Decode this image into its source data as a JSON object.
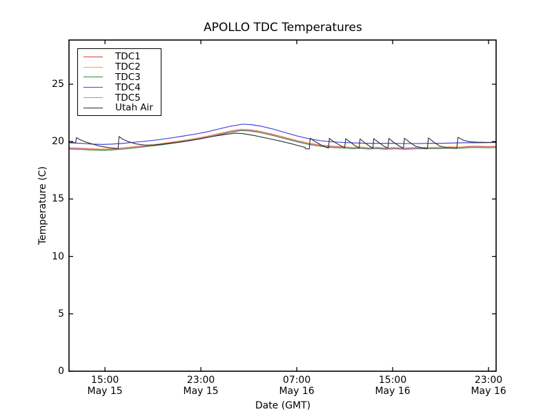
{
  "figure": {
    "background": "#ffffff",
    "frame_color": "#000000"
  },
  "chart_data": {
    "type": "line",
    "title": "APOLLO TDC Temperatures",
    "xlabel": "Date (GMT)",
    "ylabel": "Temperature (C)",
    "x_units": "hours since May 15 00:00 GMT",
    "xlim": [
      12.0,
      47.63
    ],
    "ylim": [
      0,
      28.85
    ],
    "grid": false,
    "legend_position": "upper left",
    "x_ticks": [
      {
        "pos": 15,
        "time": "15:00",
        "date": "May 15"
      },
      {
        "pos": 23,
        "time": "23:00",
        "date": "May 15"
      },
      {
        "pos": 31,
        "time": "07:00",
        "date": "May 16"
      },
      {
        "pos": 39,
        "time": "15:00",
        "date": "May 16"
      },
      {
        "pos": 47,
        "time": "23:00",
        "date": "May 16"
      }
    ],
    "y_ticks": [
      0,
      5,
      10,
      15,
      20,
      25
    ],
    "series": [
      {
        "name": "TDC1",
        "color": "#e03a33",
        "width": 1.2,
        "dash": "",
        "x": [
          12.0,
          13.0,
          14.0,
          14.8,
          15.5,
          16.5,
          17.5,
          18.5,
          19.5,
          20.5,
          21.5,
          22.5,
          23.5,
          24.5,
          25.5,
          26.3,
          27.0,
          27.8,
          29.0,
          30.0,
          31.0,
          32.0,
          33.0,
          34.0,
          35.0,
          35.7,
          36.3,
          37.0,
          37.7,
          38.4,
          39.2,
          40.0,
          41.0,
          42.0,
          43.0,
          43.8,
          44.6,
          45.4,
          46.2,
          47.0,
          47.6
        ],
        "y": [
          19.44,
          19.4,
          19.35,
          19.32,
          19.35,
          19.43,
          19.54,
          19.65,
          19.77,
          19.92,
          20.07,
          20.24,
          20.44,
          20.67,
          20.9,
          21.04,
          21.02,
          20.9,
          20.62,
          20.35,
          20.07,
          19.84,
          19.67,
          19.57,
          19.52,
          19.46,
          19.5,
          19.44,
          19.48,
          19.42,
          19.46,
          19.42,
          19.46,
          19.46,
          19.48,
          19.52,
          19.5,
          19.57,
          19.57,
          19.55,
          19.57
        ]
      },
      {
        "name": "TDC2",
        "color": "#ffa216",
        "width": 1.6,
        "dash": "2 2.4",
        "x": [
          12.0,
          13.0,
          14.0,
          14.8,
          15.5,
          16.5,
          17.5,
          18.5,
          19.5,
          20.5,
          21.5,
          22.5,
          23.5,
          24.5,
          25.5,
          26.3,
          27.0,
          27.8,
          29.0,
          30.0,
          31.0,
          32.0,
          33.0,
          34.0,
          35.0,
          35.7,
          36.3,
          37.0,
          37.7,
          38.4,
          39.2,
          40.0,
          41.0,
          42.0,
          43.0,
          43.8,
          44.6,
          45.4,
          46.2,
          47.0,
          47.6
        ],
        "y": [
          19.48,
          19.44,
          19.39,
          19.36,
          19.39,
          19.47,
          19.58,
          19.69,
          19.81,
          19.96,
          20.11,
          20.28,
          20.48,
          20.71,
          20.94,
          21.08,
          21.06,
          20.94,
          20.66,
          20.39,
          20.11,
          19.88,
          19.71,
          19.61,
          19.56,
          19.5,
          19.54,
          19.48,
          19.52,
          19.46,
          19.5,
          19.46,
          19.5,
          19.5,
          19.52,
          19.56,
          19.54,
          19.61,
          19.61,
          19.59,
          19.61
        ]
      },
      {
        "name": "TDC3",
        "color": "#2e8b2e",
        "width": 1.2,
        "dash": "",
        "x": [
          12.0,
          13.0,
          14.0,
          14.8,
          15.5,
          16.5,
          17.5,
          18.5,
          19.5,
          20.5,
          21.5,
          22.5,
          23.5,
          24.5,
          25.5,
          26.3,
          27.0,
          27.8,
          29.0,
          30.0,
          31.0,
          32.0,
          33.0,
          34.0,
          35.0,
          35.7,
          36.3,
          37.0,
          37.7,
          38.4,
          39.2,
          40.0,
          41.0,
          42.0,
          43.0,
          43.8,
          44.6,
          45.4,
          46.2,
          47.0,
          47.6
        ],
        "y": [
          19.36,
          19.32,
          19.27,
          19.24,
          19.27,
          19.35,
          19.46,
          19.57,
          19.69,
          19.84,
          19.99,
          20.16,
          20.36,
          20.59,
          20.82,
          20.96,
          20.94,
          20.82,
          20.54,
          20.27,
          19.99,
          19.76,
          19.59,
          19.49,
          19.44,
          19.38,
          19.42,
          19.36,
          19.4,
          19.34,
          19.38,
          19.34,
          19.38,
          19.38,
          19.4,
          19.44,
          19.42,
          19.49,
          19.49,
          19.47,
          19.49
        ]
      },
      {
        "name": "TDC4",
        "color": "#4444dd",
        "width": 1.2,
        "dash": "",
        "x": [
          12.0,
          13.0,
          14.0,
          14.8,
          15.5,
          16.5,
          17.5,
          18.5,
          19.5,
          20.5,
          21.5,
          22.5,
          23.5,
          24.5,
          25.5,
          26.5,
          27.2,
          28.0,
          29.0,
          30.0,
          31.0,
          32.0,
          33.0,
          34.0,
          35.0,
          36.0,
          37.0,
          38.0,
          39.0,
          40.0,
          41.0,
          42.0,
          43.0,
          44.0,
          45.0,
          46.0,
          47.6
        ],
        "y": [
          19.9,
          19.85,
          19.78,
          19.75,
          19.78,
          19.85,
          19.95,
          20.05,
          20.17,
          20.32,
          20.48,
          20.65,
          20.85,
          21.1,
          21.35,
          21.52,
          21.48,
          21.35,
          21.1,
          20.8,
          20.5,
          20.25,
          20.08,
          19.98,
          19.92,
          19.88,
          19.85,
          19.85,
          19.85,
          19.83,
          19.83,
          19.85,
          19.85,
          19.88,
          19.9,
          19.9,
          19.92
        ]
      },
      {
        "name": "TDC5",
        "color": "#c47fd0",
        "width": 1.2,
        "dash": "",
        "x": [
          12.0,
          13.0,
          14.0,
          14.8,
          15.5,
          16.5,
          17.5,
          18.5,
          19.5,
          20.5,
          21.5,
          22.5,
          23.5,
          24.5,
          25.5,
          26.3,
          27.0,
          27.8,
          29.0,
          30.0,
          31.0,
          32.0,
          33.0,
          34.0,
          35.0,
          35.7,
          36.3,
          37.0,
          37.7,
          38.4,
          39.2,
          40.0,
          41.0,
          42.0,
          43.0,
          43.8,
          44.6,
          45.4,
          46.2,
          47.0,
          47.6
        ],
        "y": [
          19.41,
          19.37,
          19.32,
          19.29,
          19.32,
          19.4,
          19.51,
          19.62,
          19.74,
          19.89,
          20.04,
          20.21,
          20.41,
          20.64,
          20.87,
          21.01,
          20.99,
          20.87,
          20.59,
          20.32,
          20.04,
          19.81,
          19.64,
          19.54,
          19.49,
          19.43,
          19.47,
          19.41,
          19.45,
          19.39,
          19.43,
          19.39,
          19.43,
          19.43,
          19.45,
          19.49,
          19.47,
          19.54,
          19.54,
          19.52,
          19.54
        ]
      },
      {
        "name": "Utah Air",
        "color": "#2a2a2a",
        "width": 1.1,
        "dash": "",
        "x": [
          12.0,
          12.3,
          12.55,
          12.62,
          12.9,
          13.3,
          13.9,
          14.6,
          15.3,
          15.95,
          16.1,
          16.17,
          16.5,
          17.0,
          17.6,
          18.3,
          19.0,
          20.0,
          21.0,
          22.0,
          23.0,
          24.0,
          25.0,
          25.8,
          26.5,
          27.5,
          28.5,
          29.5,
          30.5,
          31.3,
          31.7,
          31.73,
          32.05,
          32.12,
          32.5,
          33.0,
          33.5,
          33.65,
          33.72,
          34.1,
          34.6,
          35.0,
          35.08,
          35.5,
          35.9,
          36.2,
          36.28,
          36.7,
          37.1,
          37.35,
          37.42,
          37.9,
          38.3,
          38.6,
          38.68,
          39.1,
          39.6,
          39.9,
          39.98,
          40.4,
          40.9,
          41.5,
          41.9,
          41.98,
          42.4,
          42.9,
          43.5,
          44.35,
          44.45,
          44.9,
          45.4,
          46.0,
          47.0,
          47.6
        ],
        "y": [
          20.0,
          19.93,
          19.88,
          20.35,
          20.18,
          20.0,
          19.8,
          19.6,
          19.48,
          19.4,
          19.4,
          20.45,
          20.2,
          19.98,
          19.8,
          19.7,
          19.7,
          19.8,
          19.93,
          20.08,
          20.25,
          20.45,
          20.62,
          20.73,
          20.7,
          20.52,
          20.3,
          20.08,
          19.83,
          19.6,
          19.5,
          19.38,
          19.36,
          20.3,
          20.02,
          19.72,
          19.48,
          19.44,
          20.28,
          19.98,
          19.68,
          19.48,
          20.26,
          19.93,
          19.62,
          19.46,
          20.24,
          19.88,
          19.58,
          19.44,
          20.26,
          19.88,
          19.58,
          19.44,
          20.28,
          19.92,
          19.58,
          19.44,
          20.3,
          19.96,
          19.6,
          19.44,
          19.41,
          20.33,
          19.98,
          19.63,
          19.46,
          19.41,
          20.38,
          20.12,
          19.99,
          19.95,
          19.93,
          19.95
        ]
      }
    ]
  }
}
